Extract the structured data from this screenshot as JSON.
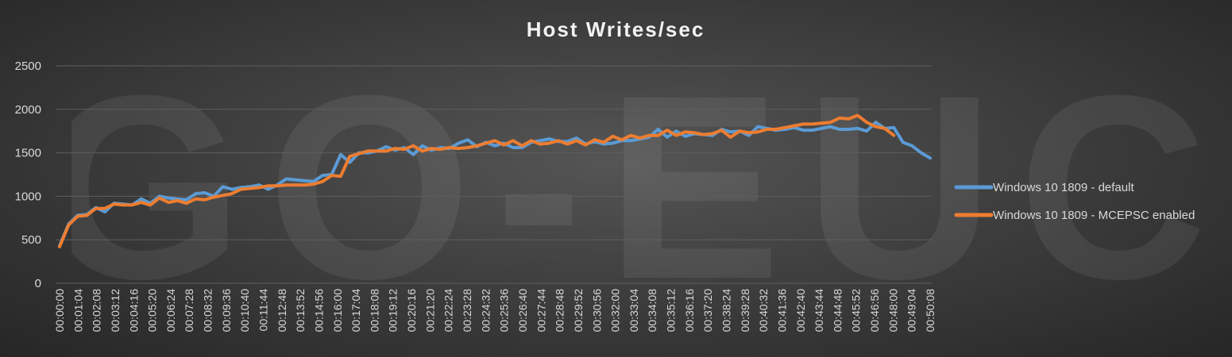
{
  "colors": {
    "series_default": "#5b9bd5",
    "series_mcepsc": "#ed7d31",
    "gridline": "#5e5e5e",
    "text": "#d9d9d9",
    "title": "#f2f2f2",
    "watermark": "#ffffff"
  },
  "chart_data": {
    "type": "line",
    "title": "Host Writes/sec",
    "watermark": "GO-EUC",
    "xlabel": "",
    "ylabel": "",
    "ylim": [
      0,
      2500
    ],
    "yticks": [
      0,
      500,
      1000,
      1500,
      2000,
      2500
    ],
    "grid": true,
    "legend_position": "right",
    "x_tick_labels": [
      "00:00:00",
      "00:01:04",
      "00:02:08",
      "00:03:12",
      "00:04:16",
      "00:05:20",
      "00:06:24",
      "00:07:28",
      "00:08:32",
      "00:09:36",
      "00:10:40",
      "00:11:44",
      "00:12:48",
      "00:13:52",
      "00:14:56",
      "00:16:00",
      "00:17:04",
      "00:18:08",
      "00:19:12",
      "00:20:16",
      "00:21:20",
      "00:22:24",
      "00:23:28",
      "00:24:32",
      "00:25:36",
      "00:26:40",
      "00:27:44",
      "00:28:48",
      "00:29:52",
      "00:30:56",
      "00:32:00",
      "00:33:04",
      "00:34:08",
      "00:35:12",
      "00:36:16",
      "00:37:20",
      "00:38:24",
      "00:39:28",
      "00:40:32",
      "00:41:36",
      "00:42:40",
      "00:43:44",
      "00:44:48",
      "00:45:52",
      "00:46:56",
      "00:48:00",
      "00:49:04",
      "00:50:08"
    ],
    "sample_interval_seconds": 32,
    "series": [
      {
        "name": "Windows 10 1809 - default",
        "values": [
          430,
          680,
          780,
          790,
          870,
          820,
          920,
          910,
          900,
          970,
          920,
          1000,
          980,
          970,
          960,
          1030,
          1040,
          1000,
          1110,
          1080,
          1100,
          1110,
          1130,
          1080,
          1130,
          1200,
          1190,
          1180,
          1170,
          1240,
          1250,
          1480,
          1390,
          1500,
          1500,
          1520,
          1570,
          1530,
          1560,
          1480,
          1580,
          1530,
          1560,
          1550,
          1610,
          1650,
          1570,
          1620,
          1580,
          1610,
          1560,
          1560,
          1620,
          1640,
          1660,
          1630,
          1630,
          1670,
          1600,
          1630,
          1600,
          1610,
          1640,
          1640,
          1660,
          1680,
          1770,
          1680,
          1750,
          1690,
          1720,
          1710,
          1700,
          1770,
          1740,
          1750,
          1700,
          1800,
          1780,
          1760,
          1770,
          1790,
          1760,
          1760,
          1780,
          1800,
          1770,
          1770,
          1780,
          1750,
          1850,
          1780,
          1790,
          1620,
          1580,
          1500,
          1440
        ]
      },
      {
        "name": "Windows 10 1809 - MCEPSC enabled",
        "values": [
          420,
          670,
          770,
          780,
          860,
          860,
          910,
          900,
          900,
          930,
          900,
          980,
          930,
          950,
          920,
          970,
          960,
          990,
          1010,
          1030,
          1080,
          1090,
          1100,
          1120,
          1120,
          1130,
          1130,
          1130,
          1140,
          1170,
          1240,
          1230,
          1460,
          1490,
          1520,
          1520,
          1520,
          1550,
          1540,
          1580,
          1520,
          1550,
          1540,
          1560,
          1550,
          1560,
          1580,
          1610,
          1640,
          1590,
          1640,
          1580,
          1640,
          1600,
          1610,
          1640,
          1600,
          1640,
          1590,
          1650,
          1620,
          1690,
          1650,
          1700,
          1670,
          1700,
          1700,
          1760,
          1700,
          1740,
          1730,
          1710,
          1720,
          1760,
          1680,
          1750,
          1730,
          1740,
          1770,
          1770,
          1790,
          1810,
          1830,
          1830,
          1840,
          1850,
          1900,
          1890,
          1930,
          1850,
          1800,
          1780,
          1700
        ]
      }
    ]
  }
}
